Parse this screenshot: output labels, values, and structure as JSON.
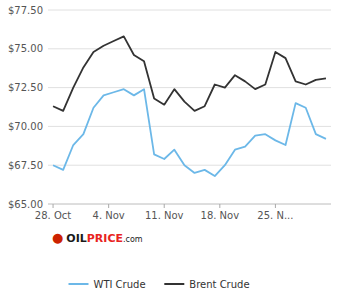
{
  "chart_data": {
    "type": "line",
    "x": [
      0,
      1,
      2,
      3,
      4,
      5,
      6,
      7,
      8,
      9,
      10,
      11,
      12,
      13,
      14,
      15,
      16,
      17,
      18,
      19,
      20,
      21,
      22,
      23,
      24,
      25,
      26,
      27
    ],
    "series": [
      {
        "name": "WTI Crude",
        "color": "#6cb8e8",
        "values": [
          67.5,
          67.2,
          68.8,
          69.5,
          71.2,
          72.0,
          72.2,
          72.4,
          72.0,
          72.4,
          68.2,
          67.9,
          68.5,
          67.5,
          67.0,
          67.2,
          66.8,
          67.5,
          68.5,
          68.7,
          69.4,
          69.5,
          69.1,
          68.8,
          71.5,
          71.2,
          69.5,
          69.2
        ]
      },
      {
        "name": "Brent Crude",
        "color": "#333333",
        "values": [
          71.3,
          71.0,
          72.5,
          73.8,
          74.8,
          75.2,
          75.5,
          75.8,
          74.6,
          74.2,
          71.8,
          71.4,
          72.4,
          71.6,
          71.0,
          71.3,
          72.7,
          72.5,
          73.3,
          72.9,
          72.4,
          72.7,
          74.8,
          74.4,
          72.9,
          72.7,
          73.0,
          73.1
        ]
      }
    ],
    "xlim": [
      -0.5,
      27.5
    ],
    "xticks": [
      {
        "value": 0,
        "label": "28. Oct"
      },
      {
        "value": 5.5,
        "label": "4. Nov"
      },
      {
        "value": 11,
        "label": "11. Nov"
      },
      {
        "value": 16.5,
        "label": "18. Nov"
      },
      {
        "value": 22,
        "label": "25. N..."
      }
    ],
    "ylim": [
      65.0,
      77.5
    ],
    "yticks": [
      {
        "value": 65.0,
        "label": "$65.00"
      },
      {
        "value": 67.5,
        "label": "$67.50"
      },
      {
        "value": 70.0,
        "label": "$70.00"
      },
      {
        "value": 72.5,
        "label": "$72.50"
      },
      {
        "value": 75.0,
        "label": "$75.00"
      },
      {
        "value": 77.5,
        "label": "$77.50"
      }
    ],
    "grid": true,
    "legend": "bottom",
    "annotations": [
      {
        "text": "●",
        "color": "#cc2200"
      },
      {
        "text": "OIL",
        "color": "#1a1a1a"
      },
      {
        "text": "PRICE",
        "color": "#e8231e"
      },
      {
        "text": ".com",
        "color": "#1a1a1a"
      }
    ]
  }
}
